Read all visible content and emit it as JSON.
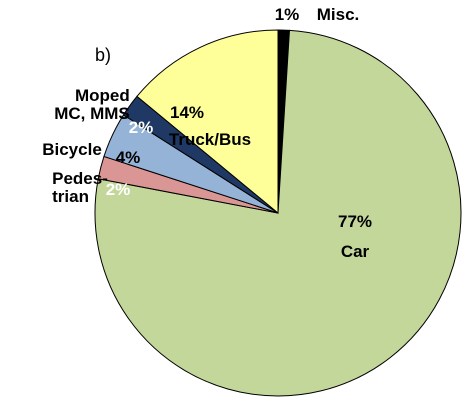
{
  "chart_data": {
    "type": "pie",
    "panel_label": "b)",
    "categories": [
      "Misc.",
      "Car",
      "Pedes-\ntrian",
      "Bicycle",
      "Moped\nMC, MMS",
      "Truck/Bus"
    ],
    "values": [
      1,
      77,
      2,
      4,
      2,
      14
    ],
    "value_labels": [
      "1%",
      "77%",
      "2%",
      "4%",
      "2%",
      "14%"
    ],
    "colors": [
      "#000000",
      "#c4d79b",
      "#da9694",
      "#95b3d7",
      "#1f3864",
      "#ffff99"
    ]
  }
}
